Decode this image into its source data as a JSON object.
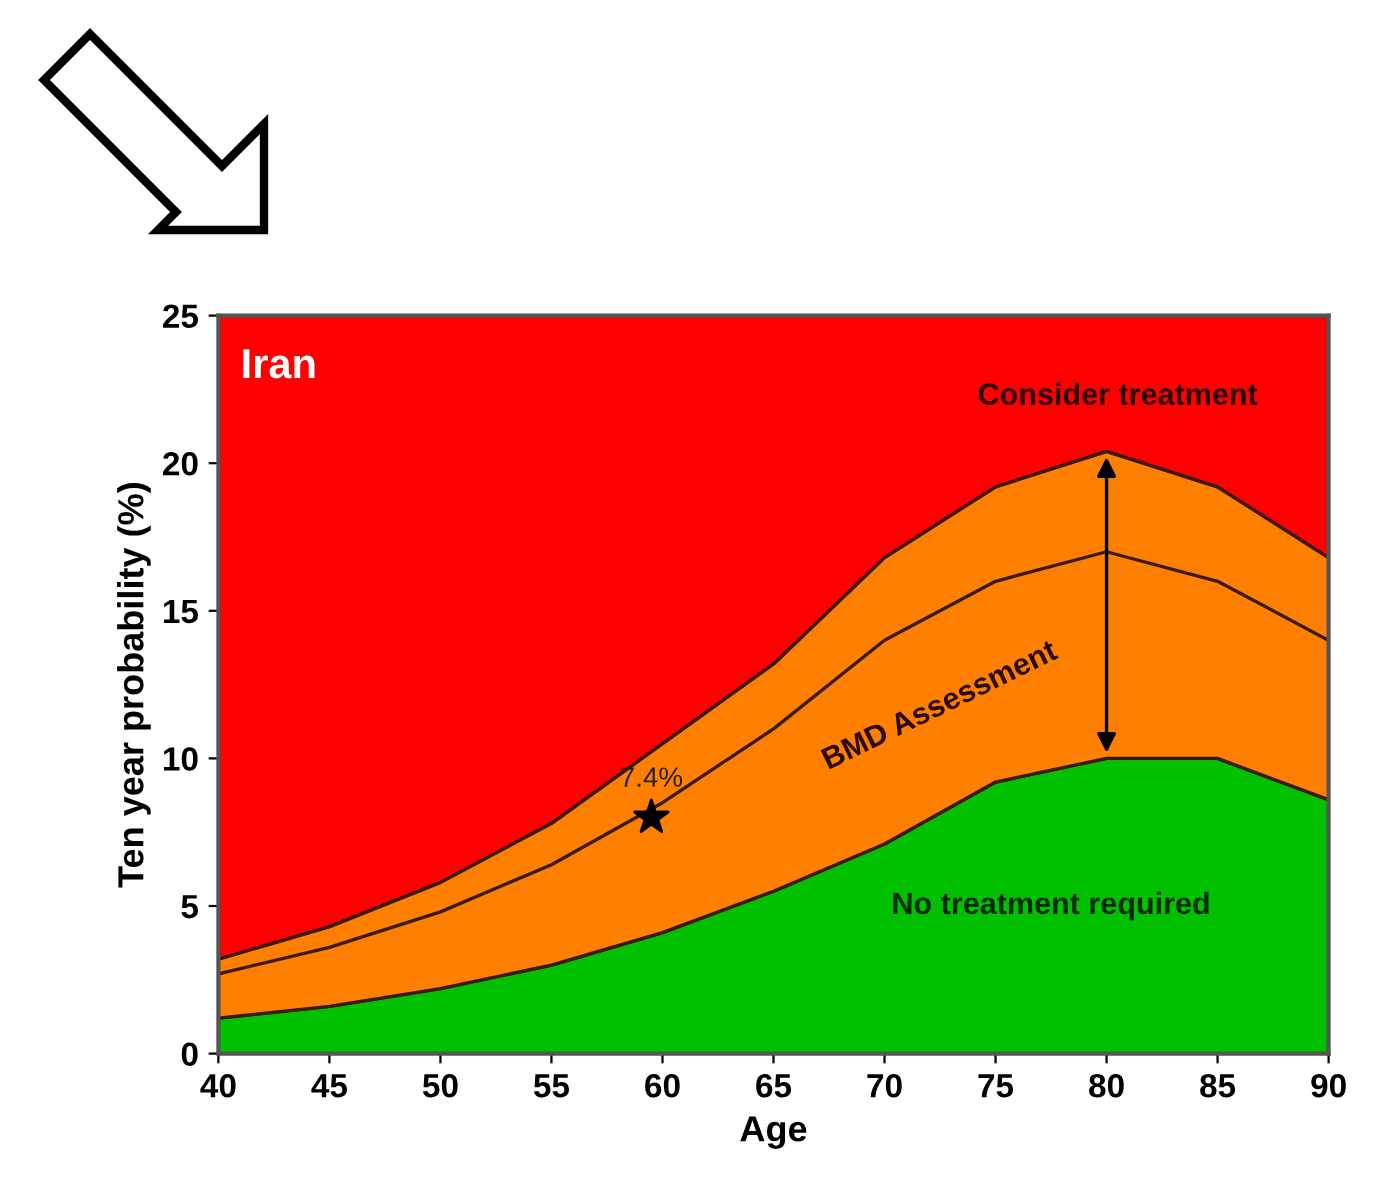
{
  "chart_data": {
    "type": "area",
    "stacked": true,
    "xlabel": "Age",
    "ylabel": "Ten year probability (%)",
    "x": [
      40,
      45,
      50,
      55,
      60,
      65,
      70,
      75,
      80,
      85,
      90
    ],
    "series": [
      {
        "color": "#00c000",
        "values": [
          1.2,
          1.6,
          2.2,
          3.0,
          4.1,
          5.5,
          7.1,
          9.2,
          10.0,
          10.0,
          8.6
        ]
      },
      {
        "color": "#ff8000",
        "values": [
          2.0,
          2.7,
          3.6,
          4.8,
          6.4,
          7.7,
          9.7,
          10.0,
          10.4,
          9.2,
          8.2
        ]
      },
      {
        "color": "#ff0000",
        "values": [
          21.8,
          20.7,
          19.2,
          17.2,
          14.5,
          11.8,
          8.2,
          5.8,
          4.6,
          5.8,
          8.2
        ]
      },
      {
        "type": "line",
        "color": "#3a1a0a",
        "values": [
          2.7,
          3.6,
          4.8,
          6.4,
          8.5,
          11.0,
          14.0,
          16.0,
          17.0,
          16.0,
          14.0
        ]
      },
      {
        "type": "scatter",
        "color": "#000000",
        "marker": "star",
        "x": [
          59.5
        ],
        "values": [
          8.0
        ]
      }
    ],
    "annotations": [
      "Iran",
      "Consider treatment",
      "BMD Assessment",
      "No treatment required",
      {
        "text": "7.4%",
        "x": 59.5,
        "y": 8.0
      }
    ],
    "xlim": [
      40,
      90
    ],
    "ylim": [
      0,
      25
    ],
    "xticks": [
      40,
      45,
      50,
      55,
      60,
      65,
      70,
      75,
      80,
      85,
      90
    ],
    "yticks": [
      0,
      5,
      10,
      15,
      20,
      25
    ],
    "grid": false
  }
}
